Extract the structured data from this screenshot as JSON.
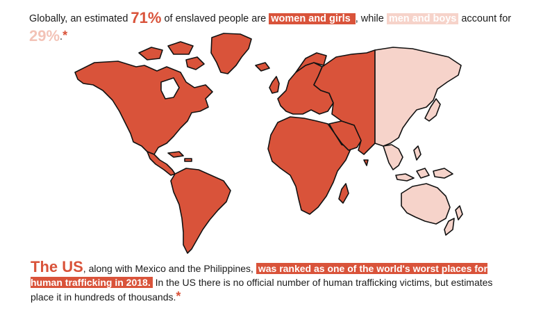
{
  "headline": {
    "part1": "Globally, an estimated ",
    "pct_women": "71%",
    "part2": " of enslaved people are ",
    "women_label": "women and girls ",
    "part3": ", while ",
    "men_label": "men and boys",
    "part4": " account for",
    "pct_men": "29%",
    "period": ".",
    "asterisk": "*"
  },
  "map": {
    "women_color": "#d9533a",
    "men_color": "#f6d3ca"
  },
  "footer": {
    "lead": "The US",
    "part1": ", along with Mexico and the Philippines, ",
    "highlight": "was ranked as one of the world's worst places for human trafficking in 2018.",
    "part2": " In the US there is no official number of human trafficking victims, but estimates place it in hundreds of thousands.",
    "asterisk": "*"
  }
}
